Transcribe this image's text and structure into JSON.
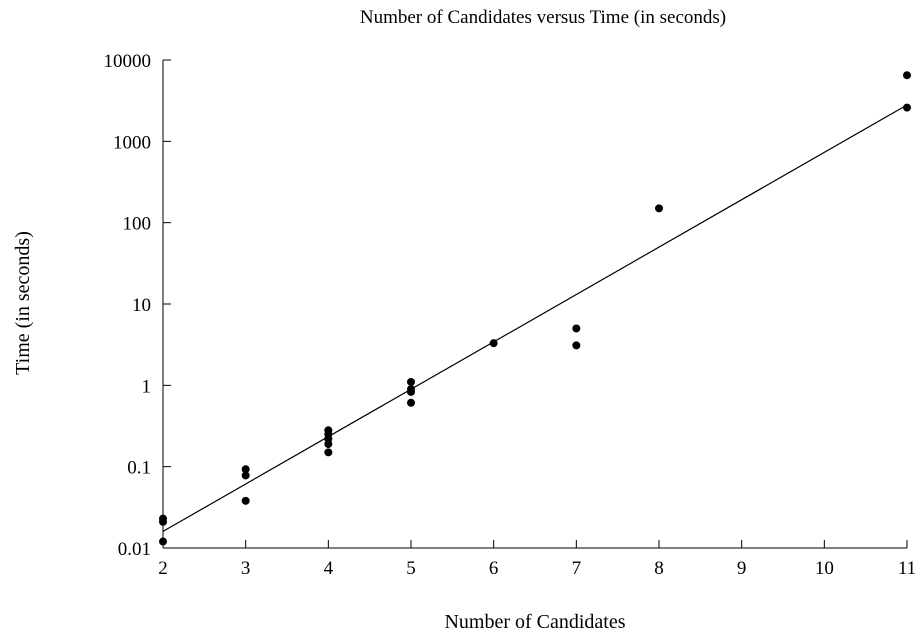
{
  "chart_data": {
    "type": "scatter",
    "title": "Number of Candidates versus Time (in seconds)",
    "xlabel": "Number of Candidates",
    "ylabel": "Time (in seconds)",
    "xlim": [
      2,
      11
    ],
    "ylim": [
      0.01,
      10000
    ],
    "yscale": "log",
    "x_ticks": [
      2,
      3,
      4,
      5,
      6,
      7,
      8,
      9,
      10,
      11
    ],
    "x_tick_labels": [
      "2",
      "3",
      "4",
      "5",
      "6",
      "7",
      "8",
      "9",
      "10",
      "11"
    ],
    "y_ticks": [
      0.01,
      0.1,
      1,
      10,
      100,
      1000,
      10000
    ],
    "y_tick_labels": [
      "0.01",
      "0.1",
      "1",
      "10",
      "100",
      "1000",
      "10000"
    ],
    "grid": false,
    "legend": "none",
    "points": [
      {
        "x": 2,
        "y": 0.023
      },
      {
        "x": 2,
        "y": 0.021
      },
      {
        "x": 2,
        "y": 0.012
      },
      {
        "x": 3,
        "y": 0.093
      },
      {
        "x": 3,
        "y": 0.078
      },
      {
        "x": 3,
        "y": 0.038
      },
      {
        "x": 4,
        "y": 0.28
      },
      {
        "x": 4,
        "y": 0.25
      },
      {
        "x": 4,
        "y": 0.22
      },
      {
        "x": 4,
        "y": 0.19
      },
      {
        "x": 4,
        "y": 0.15
      },
      {
        "x": 5,
        "y": 1.1
      },
      {
        "x": 5,
        "y": 0.9
      },
      {
        "x": 5,
        "y": 0.83
      },
      {
        "x": 5,
        "y": 0.61
      },
      {
        "x": 6,
        "y": 3.3
      },
      {
        "x": 7,
        "y": 5.0
      },
      {
        "x": 7,
        "y": 3.1
      },
      {
        "x": 8,
        "y": 150
      },
      {
        "x": 11,
        "y": 6500
      },
      {
        "x": 11,
        "y": 2600
      }
    ],
    "trendline": {
      "type": "exponential fit",
      "points": [
        {
          "x": 2,
          "y": 0.016
        },
        {
          "x": 11,
          "y": 2800
        }
      ]
    },
    "colors": {
      "marker": "#000000",
      "line": "#000000",
      "background": "#ffffff"
    }
  }
}
